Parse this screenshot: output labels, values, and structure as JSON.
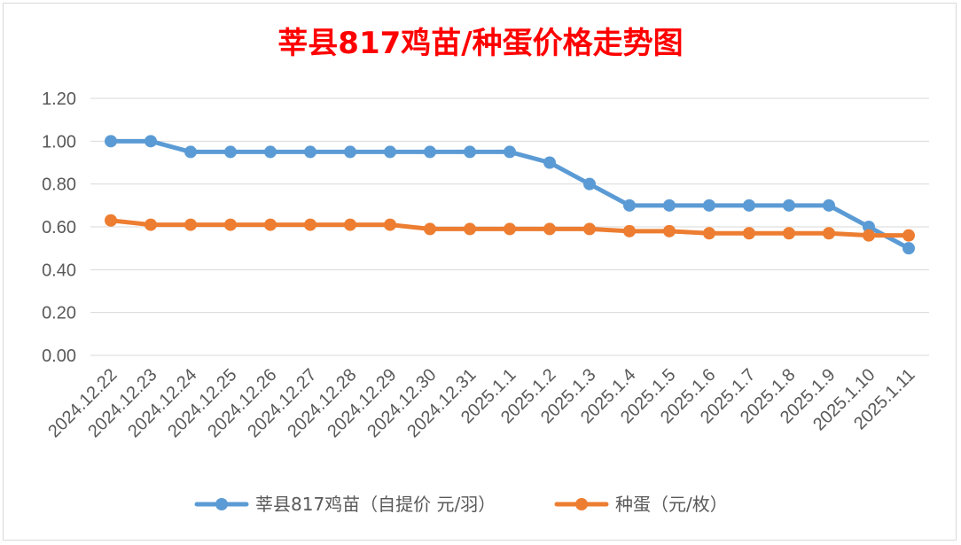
{
  "chart_data": {
    "type": "line",
    "title": "莘县817鸡苗/种蛋价格走势图",
    "xlabel": "",
    "ylabel": "",
    "ylim": [
      0,
      1.2
    ],
    "y_ticks": [
      "0.00",
      "0.20",
      "0.40",
      "0.60",
      "0.80",
      "1.00",
      "1.20"
    ],
    "grid": true,
    "legend_position": "bottom",
    "categories": [
      "2024.12.22",
      "2024.12.23",
      "2024.12.24",
      "2024.12.25",
      "2024.12.26",
      "2024.12.27",
      "2024.12.28",
      "2024.12.29",
      "2024.12.30",
      "2024.12.31",
      "2025.1.1",
      "2025.1.2",
      "2025.1.3",
      "2025.1.4",
      "2025.1.5",
      "2025.1.6",
      "2025.1.7",
      "2025.1.8",
      "2025.1.9",
      "2025.1.10",
      "2025.1.11"
    ],
    "series": [
      {
        "name": "莘县817鸡苗（自提价 元/羽）",
        "color": "#5b9bd5",
        "values": [
          1.0,
          1.0,
          0.95,
          0.95,
          0.95,
          0.95,
          0.95,
          0.95,
          0.95,
          0.95,
          0.95,
          0.9,
          0.8,
          0.7,
          0.7,
          0.7,
          0.7,
          0.7,
          0.7,
          0.6,
          0.5
        ]
      },
      {
        "name": "种蛋（元/枚）",
        "color": "#ed7d31",
        "values": [
          0.63,
          0.61,
          0.61,
          0.61,
          0.61,
          0.61,
          0.61,
          0.61,
          0.59,
          0.59,
          0.59,
          0.59,
          0.59,
          0.58,
          0.58,
          0.57,
          0.57,
          0.57,
          0.57,
          0.56,
          0.56
        ]
      }
    ]
  }
}
